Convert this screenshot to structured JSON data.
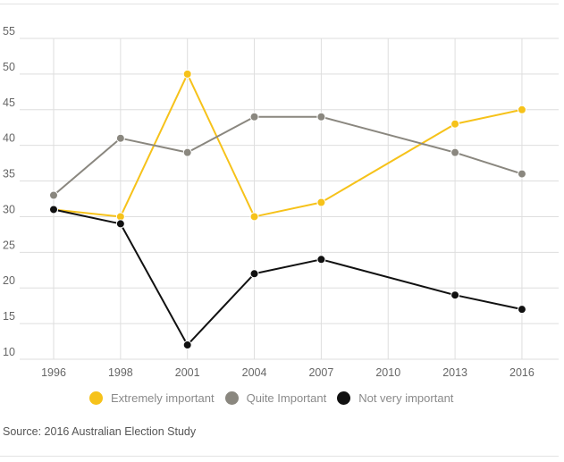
{
  "chart_data": {
    "type": "line",
    "categories": [
      "1996",
      "1998",
      "2001",
      "2004",
      "2007",
      "2010",
      "2013",
      "2016"
    ],
    "x": [
      1996,
      1998,
      2001,
      2004,
      2007,
      2010,
      2013,
      2016
    ],
    "yticks": [
      10,
      15,
      20,
      25,
      30,
      35,
      40,
      45,
      50,
      55
    ],
    "ylim": [
      10,
      55
    ],
    "grid": true,
    "legend_position": "bottom",
    "series": [
      {
        "name": "Extremely important",
        "color": "#f6c21a",
        "x": [
          1996,
          1998,
          2001,
          2004,
          2007,
          2013,
          2016
        ],
        "values": [
          31,
          30,
          50,
          30,
          32,
          43,
          45
        ]
      },
      {
        "name": "Quite Important",
        "color": "#8a877f",
        "x": [
          1996,
          1998,
          2001,
          2004,
          2007,
          2013,
          2016
        ],
        "values": [
          33,
          41,
          39,
          44,
          44,
          39,
          36
        ]
      },
      {
        "name": "Not very important",
        "color": "#111111",
        "x": [
          1996,
          1998,
          2001,
          2004,
          2007,
          2013,
          2016
        ],
        "values": [
          31,
          29,
          12,
          22,
          24,
          19,
          17
        ]
      }
    ]
  },
  "source": "Source: 2016 Australian Election Study"
}
